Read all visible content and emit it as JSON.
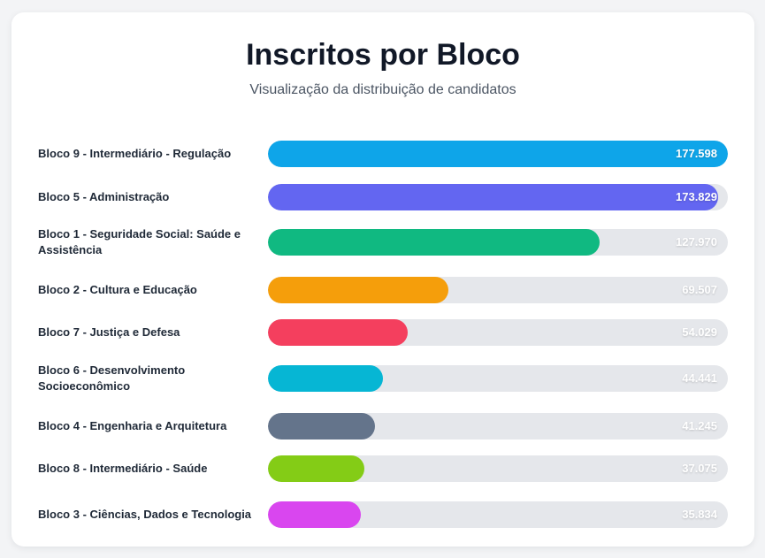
{
  "header": {
    "title": "Inscritos por Bloco",
    "subtitle": "Visualização da distribuição de candidatos"
  },
  "chart_data": {
    "type": "bar",
    "orientation": "horizontal",
    "title": "Inscritos por Bloco",
    "subtitle": "Visualização da distribuição de candidatos",
    "xlim": [
      0,
      177598
    ],
    "categories": [
      "Bloco 9 - Intermediário - Regulação",
      "Bloco 5 - Administração",
      "Bloco 1 - Seguridade Social: Saúde e Assistência",
      "Bloco 2 - Cultura e Educação",
      "Bloco 7 - Justiça e Defesa",
      "Bloco 6 - Desenvolvimento Socioeconômico",
      "Bloco 4 - Engenharia e Arquitetura",
      "Bloco 8 - Intermediário - Saúde",
      "Bloco 3 - Ciências, Dados e Tecnologia"
    ],
    "values": [
      177598,
      173829,
      127970,
      69507,
      54029,
      44441,
      41245,
      37075,
      35834
    ],
    "value_labels": [
      "177.598",
      "173.829",
      "127.970",
      "69.507",
      "54.029",
      "44.441",
      "41.245",
      "37.075",
      "35.834"
    ],
    "colors": [
      "#0ea5e9",
      "#6366f1",
      "#10b981",
      "#f59e0b",
      "#f43f5e",
      "#06b6d4",
      "#64748b",
      "#84cc16",
      "#d946ef"
    ],
    "track_color": "#e5e7eb"
  }
}
